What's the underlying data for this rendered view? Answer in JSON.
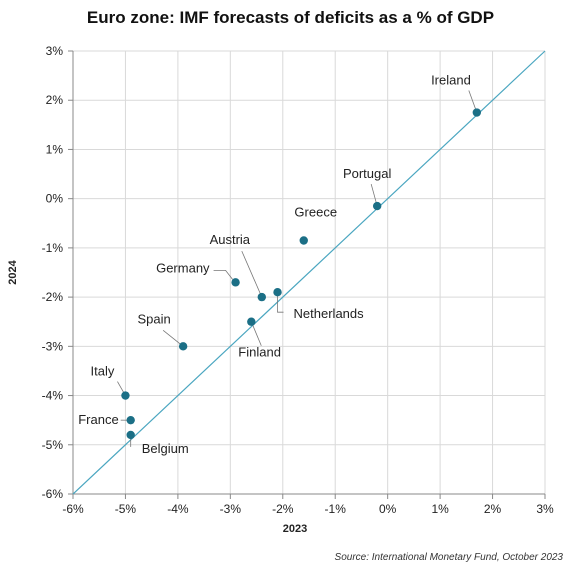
{
  "chart_data": {
    "type": "scatter",
    "title": "Euro zone: IMF forecasts of deficits as a % of GDP",
    "xlabel": "2023",
    "ylabel": "2024",
    "xlim": [
      -6,
      3
    ],
    "ylim": [
      -6,
      3
    ],
    "x_ticks": [
      "-6%",
      "-5%",
      "-4%",
      "-3%",
      "-2%",
      "-1%",
      "0%",
      "1%",
      "2%",
      "3%"
    ],
    "y_ticks": [
      "3%",
      "2%",
      "1%",
      "0%",
      "-1%",
      "-2%",
      "-3%",
      "-4%",
      "-5%",
      "-6%"
    ],
    "grid": true,
    "reference_line": "y = x",
    "point_color": "#1b6f86",
    "line_color": "#4aa6c0",
    "points": [
      {
        "label": "Ireland",
        "x": 1.7,
        "y": 1.75
      },
      {
        "label": "Portugal",
        "x": -0.2,
        "y": -0.15
      },
      {
        "label": "Greece",
        "x": -1.6,
        "y": -0.85
      },
      {
        "label": "Austria",
        "x": -2.4,
        "y": -2.0
      },
      {
        "label": "Netherlands",
        "x": -2.1,
        "y": -1.9
      },
      {
        "label": "Germany",
        "x": -2.9,
        "y": -1.7
      },
      {
        "label": "Finland",
        "x": -2.6,
        "y": -2.5
      },
      {
        "label": "Spain",
        "x": -3.9,
        "y": -3.0
      },
      {
        "label": "Italy",
        "x": -5.0,
        "y": -4.0
      },
      {
        "label": "France",
        "x": -4.9,
        "y": -4.5
      },
      {
        "label": "Belgium",
        "x": -4.9,
        "y": -4.8
      }
    ]
  },
  "source": "Source: International Monetary Fund, October 2023"
}
